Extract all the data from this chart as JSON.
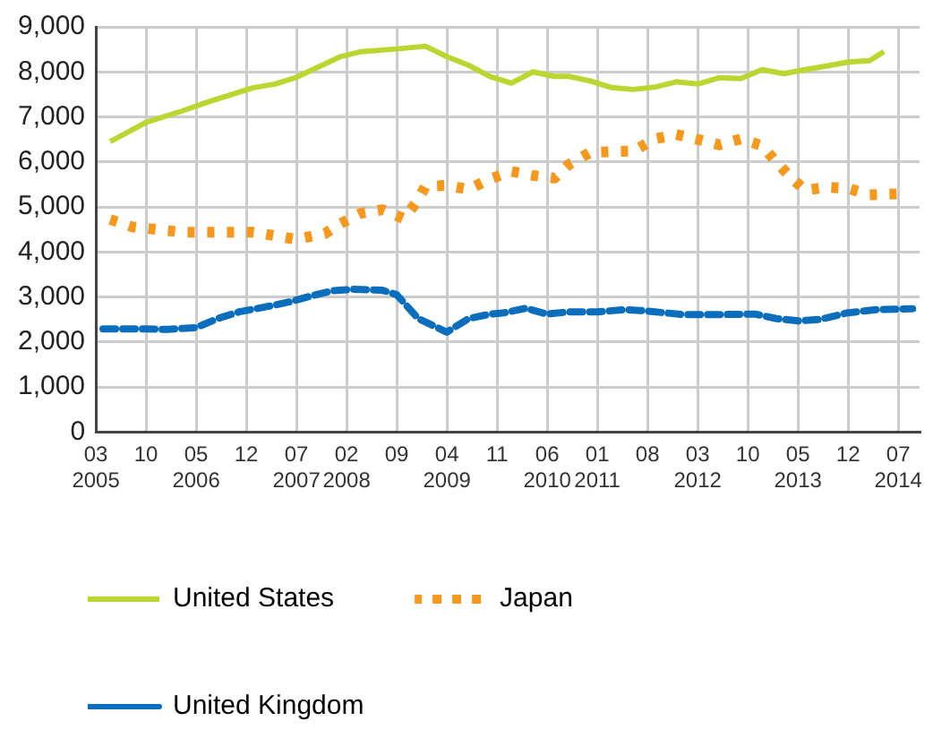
{
  "chart_data": {
    "type": "line",
    "xlim": [
      "2005-03",
      "2014-10"
    ],
    "xticks": [
      {
        "value": "2005-03",
        "label": "03\n2005"
      },
      {
        "value": "2005-10",
        "label": "10"
      },
      {
        "value": "2006-05",
        "label": "05\n2006"
      },
      {
        "value": "2006-12",
        "label": "12"
      },
      {
        "value": "2007-07",
        "label": "07\n2007"
      },
      {
        "value": "2008-02",
        "label": "02\n2008"
      },
      {
        "value": "2008-09",
        "label": "09"
      },
      {
        "value": "2009-04",
        "label": "04\n2009"
      },
      {
        "value": "2009-11",
        "label": "11"
      },
      {
        "value": "2010-06",
        "label": "06\n2010"
      },
      {
        "value": "2011-01",
        "label": "01\n2011"
      },
      {
        "value": "2011-08",
        "label": "08"
      },
      {
        "value": "2012-03",
        "label": "03\n2012"
      },
      {
        "value": "2012-10",
        "label": "10"
      },
      {
        "value": "2013-05",
        "label": "05\n2013"
      },
      {
        "value": "2013-12",
        "label": "12"
      },
      {
        "value": "2014-07",
        "label": "07\n2014"
      }
    ],
    "ylim": [
      0,
      9000
    ],
    "yticks": [
      0,
      {
        "value": 1000,
        "label": "1,000"
      },
      {
        "value": 2000,
        "label": "2,000"
      },
      {
        "value": 3000,
        "label": "3,000"
      },
      {
        "value": 4000,
        "label": "4,000"
      },
      {
        "value": 5000,
        "label": "5,000"
      },
      {
        "value": 6000,
        "label": "6,000"
      },
      {
        "value": 7000,
        "label": "7,000"
      },
      {
        "value": 8000,
        "label": "8,000"
      },
      {
        "value": 9000,
        "label": "9,000"
      }
    ],
    "grid": true,
    "legend": "bottom",
    "marker": "none",
    "series": [
      {
        "name": "United States",
        "color": "#bcd631",
        "line_style": "solid",
        "x": [
          "2005-05",
          "2005-10",
          "2006-03",
          "2006-07",
          "2007-01",
          "2007-04",
          "2007-07",
          "2008-01",
          "2008-04",
          "2008-09",
          "2009-01",
          "2009-04",
          "2009-07",
          "2009-10",
          "2010-01",
          "2010-04",
          "2010-07",
          "2010-09",
          "2010-12",
          "2011-03",
          "2011-06",
          "2011-09",
          "2011-12",
          "2012-03",
          "2012-06",
          "2012-09",
          "2012-12",
          "2013-03",
          "2013-06",
          "2013-09",
          "2013-12",
          "2014-03",
          "2014-05"
        ],
        "values": [
          6450,
          6880,
          7130,
          7350,
          7650,
          7730,
          7880,
          8330,
          8450,
          8510,
          8570,
          8340,
          8150,
          7900,
          7750,
          8000,
          7900,
          7900,
          7800,
          7650,
          7610,
          7660,
          7780,
          7730,
          7870,
          7850,
          8050,
          7960,
          8050,
          8130,
          8220,
          8250,
          8450
        ]
      },
      {
        "name": "Japan",
        "color": "#f7981d",
        "line_style": "dotted",
        "x": [
          "2005-05",
          "2005-08",
          "2005-11",
          "2006-03",
          "2006-06",
          "2006-09",
          "2007-01",
          "2007-04",
          "2007-07",
          "2007-11",
          "2008-01",
          "2008-04",
          "2008-07",
          "2008-10",
          "2008-12",
          "2009-01",
          "2009-04",
          "2009-07",
          "2009-10",
          "2010-01",
          "2010-04",
          "2010-07",
          "2010-09",
          "2010-12",
          "2011-03",
          "2011-06",
          "2011-09",
          "2011-12",
          "2012-03",
          "2012-06",
          "2012-09",
          "2012-12",
          "2013-02",
          "2013-04",
          "2013-06",
          "2013-09",
          "2013-12",
          "2014-03",
          "2014-07"
        ],
        "values": [
          4720,
          4560,
          4510,
          4440,
          4440,
          4440,
          4440,
          4360,
          4280,
          4410,
          4620,
          4860,
          4940,
          4740,
          5160,
          5460,
          5480,
          5390,
          5620,
          5790,
          5700,
          5640,
          5940,
          6210,
          6230,
          6240,
          6510,
          6610,
          6500,
          6380,
          6510,
          6360,
          5990,
          5660,
          5370,
          5440,
          5410,
          5270,
          5290
        ]
      },
      {
        "name": "United Kingdom",
        "color": "#0a6ebd",
        "line_style": "dashed",
        "x": [
          "2005-04",
          "2005-10",
          "2006-01",
          "2006-05",
          "2006-08",
          "2006-11",
          "2007-03",
          "2007-06",
          "2007-09",
          "2007-12",
          "2008-03",
          "2008-07",
          "2008-09",
          "2008-12",
          "2009-04",
          "2009-07",
          "2009-10",
          "2009-12",
          "2010-03",
          "2010-06",
          "2010-09",
          "2011-01",
          "2011-05",
          "2011-07",
          "2012-01",
          "2012-06",
          "2012-11",
          "2013-02",
          "2013-05",
          "2013-08",
          "2013-12",
          "2014-04",
          "2014-09"
        ],
        "values": [
          2290,
          2290,
          2280,
          2320,
          2520,
          2670,
          2790,
          2890,
          3020,
          3140,
          3170,
          3150,
          3050,
          2520,
          2220,
          2520,
          2620,
          2650,
          2750,
          2620,
          2670,
          2670,
          2720,
          2700,
          2610,
          2610,
          2620,
          2520,
          2470,
          2500,
          2650,
          2720,
          2740
        ]
      }
    ]
  }
}
